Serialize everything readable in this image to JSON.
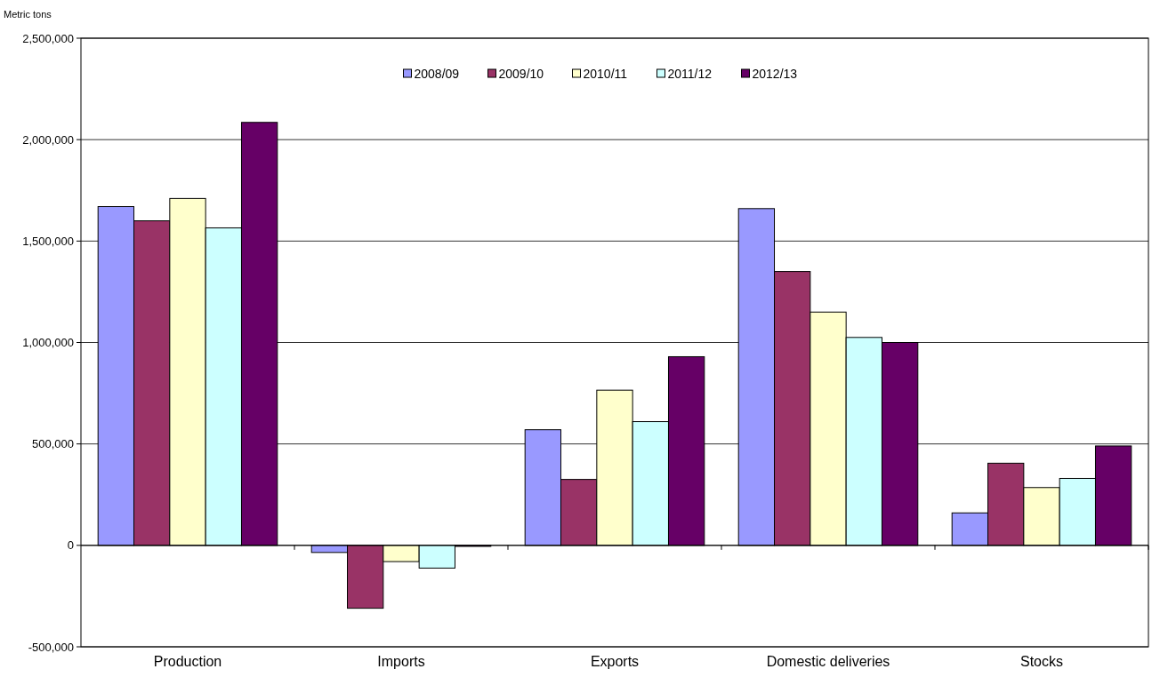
{
  "chart_data": {
    "type": "bar",
    "ylabel": "Metric tons",
    "categories": [
      "Production",
      "Imports",
      "Exports",
      "Domestic deliveries",
      "Stocks"
    ],
    "series": [
      {
        "name": "2008/09",
        "color": "#9999ff",
        "values": [
          1670000,
          -35000,
          570000,
          1660000,
          160000
        ]
      },
      {
        "name": "2009/10",
        "color": "#993366",
        "values": [
          1600000,
          -310000,
          325000,
          1350000,
          405000
        ]
      },
      {
        "name": "2010/11",
        "color": "#ffffcc",
        "values": [
          1710000,
          -80000,
          765000,
          1150000,
          285000
        ]
      },
      {
        "name": "2011/12",
        "color": "#ccffff",
        "values": [
          1565000,
          -112000,
          610000,
          1025000,
          330000
        ]
      },
      {
        "name": "2012/13",
        "color": "#660066",
        "values": [
          2085000,
          -5000,
          930000,
          1000000,
          490000
        ]
      }
    ],
    "ylim": [
      -500000,
      2500000
    ],
    "yticks": [
      {
        "value": -500000,
        "label": "-500,000"
      },
      {
        "value": 0,
        "label": "0"
      },
      {
        "value": 500000,
        "label": "500,000"
      },
      {
        "value": 1000000,
        "label": "1,000,000"
      },
      {
        "value": 1500000,
        "label": "1,500,000"
      },
      {
        "value": 2000000,
        "label": "2,000,000"
      },
      {
        "value": 2500000,
        "label": "2,500,000"
      }
    ],
    "grid": "y",
    "legend": "top"
  }
}
